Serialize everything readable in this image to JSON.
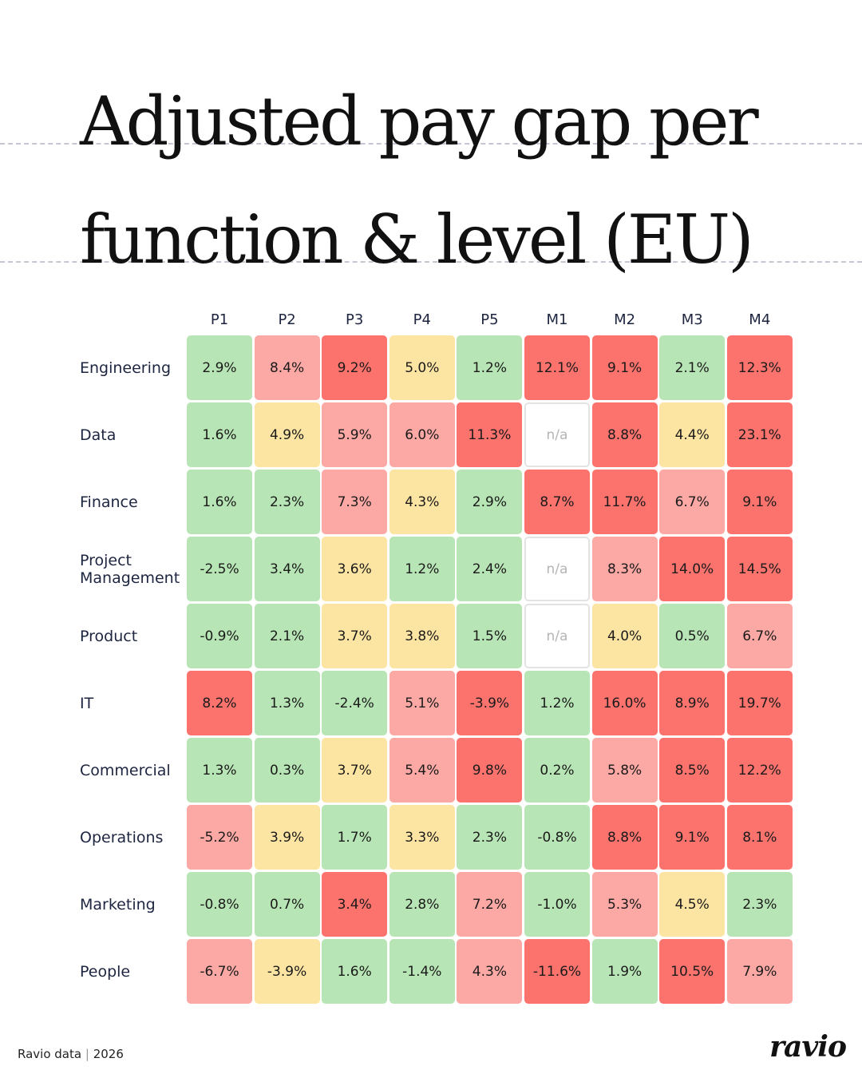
{
  "chart_data": {
    "type": "heatmap",
    "title": "Adjusted pay gap per function & level (EU)",
    "x": [
      "P1",
      "P2",
      "P3",
      "P4",
      "P5",
      "M1",
      "M2",
      "M3",
      "M4"
    ],
    "y": [
      "Engineering",
      "Data",
      "Finance",
      "Project Management",
      "Product",
      "IT",
      "Commercial",
      "Operations",
      "Marketing",
      "People"
    ],
    "values": [
      [
        2.9,
        8.4,
        9.2,
        5.0,
        1.2,
        12.1,
        9.1,
        2.1,
        12.3
      ],
      [
        1.6,
        4.9,
        5.9,
        6.0,
        11.3,
        null,
        8.8,
        4.4,
        23.1
      ],
      [
        1.6,
        2.3,
        7.3,
        4.3,
        2.9,
        8.7,
        11.7,
        6.7,
        9.1
      ],
      [
        -2.5,
        3.4,
        3.6,
        1.2,
        2.4,
        null,
        8.3,
        14.0,
        14.5
      ],
      [
        -0.9,
        2.1,
        3.7,
        3.8,
        1.5,
        null,
        4.0,
        0.5,
        6.7
      ],
      [
        8.2,
        1.3,
        -2.4,
        5.1,
        -3.9,
        1.2,
        16.0,
        8.9,
        19.7
      ],
      [
        1.3,
        0.3,
        3.7,
        5.4,
        9.8,
        0.2,
        5.8,
        8.5,
        12.2
      ],
      [
        -5.2,
        3.9,
        1.7,
        3.3,
        2.3,
        -0.8,
        8.8,
        9.1,
        8.1
      ],
      [
        -0.8,
        0.7,
        3.4,
        2.8,
        7.2,
        -1.0,
        5.3,
        4.5,
        2.3
      ],
      [
        -6.7,
        -3.9,
        1.6,
        -1.4,
        4.3,
        -11.6,
        1.9,
        10.5,
        7.9
      ]
    ],
    "value_labels": [
      [
        "2.9%",
        "8.4%",
        "9.2%",
        "5.0%",
        "1.2%",
        "12.1%",
        "9.1%",
        "2.1%",
        "12.3%"
      ],
      [
        "1.6%",
        "4.9%",
        "5.9%",
        "6.0%",
        "11.3%",
        "n/a",
        "8.8%",
        "4.4%",
        "23.1%"
      ],
      [
        "1.6%",
        "2.3%",
        "7.3%",
        "4.3%",
        "2.9%",
        "8.7%",
        "11.7%",
        "6.7%",
        "9.1%"
      ],
      [
        "-2.5%",
        "3.4%",
        "3.6%",
        "1.2%",
        "2.4%",
        "n/a",
        "8.3%",
        "14.0%",
        "14.5%"
      ],
      [
        "-0.9%",
        "2.1%",
        "3.7%",
        "3.8%",
        "1.5%",
        "n/a",
        "4.0%",
        "0.5%",
        "6.7%"
      ],
      [
        "8.2%",
        "1.3%",
        "-2.4%",
        "5.1%",
        "-3.9%",
        "1.2%",
        "16.0%",
        "8.9%",
        "19.7%"
      ],
      [
        "1.3%",
        "0.3%",
        "3.7%",
        "5.4%",
        "9.8%",
        "0.2%",
        "5.8%",
        "8.5%",
        "12.2%"
      ],
      [
        "-5.2%",
        "3.9%",
        "1.7%",
        "3.3%",
        "2.3%",
        "-0.8%",
        "8.8%",
        "9.1%",
        "8.1%"
      ],
      [
        "-0.8%",
        "0.7%",
        "3.4%",
        "2.8%",
        "7.2%",
        "-1.0%",
        "5.3%",
        "4.5%",
        "2.3%"
      ],
      [
        "-6.7%",
        "-3.9%",
        "1.6%",
        "-1.4%",
        "4.3%",
        "-11.6%",
        "1.9%",
        "10.5%",
        "7.9%"
      ]
    ],
    "colors": [
      [
        "#b8e5b5",
        "#fca9a5",
        "#fc736e",
        "#fce4a3",
        "#b8e5b5",
        "#fc736e",
        "#fc736e",
        "#b8e5b5",
        "#fc736e"
      ],
      [
        "#b8e5b5",
        "#fce4a3",
        "#fca9a5",
        "#fca9a5",
        "#fc736e",
        "#ffffff",
        "#fc736e",
        "#fce4a3",
        "#fc736e"
      ],
      [
        "#b8e5b5",
        "#b8e5b5",
        "#fca9a5",
        "#fce4a3",
        "#b8e5b5",
        "#fc736e",
        "#fc736e",
        "#fca9a5",
        "#fc736e"
      ],
      [
        "#b8e5b5",
        "#b8e5b5",
        "#fce4a3",
        "#b8e5b5",
        "#b8e5b5",
        "#ffffff",
        "#fca9a5",
        "#fc736e",
        "#fc736e"
      ],
      [
        "#b8e5b5",
        "#b8e5b5",
        "#fce4a3",
        "#fce4a3",
        "#b8e5b5",
        "#ffffff",
        "#fce4a3",
        "#b8e5b5",
        "#fca9a5"
      ],
      [
        "#fc736e",
        "#b8e5b5",
        "#b8e5b5",
        "#fca9a5",
        "#fc736e",
        "#b8e5b5",
        "#fc736e",
        "#fc736e",
        "#fc736e"
      ],
      [
        "#b8e5b5",
        "#b8e5b5",
        "#fce4a3",
        "#fca9a5",
        "#fc736e",
        "#b8e5b5",
        "#fca9a5",
        "#fc736e",
        "#fc736e"
      ],
      [
        "#fca9a5",
        "#fce4a3",
        "#b8e5b5",
        "#fce4a3",
        "#b8e5b5",
        "#b8e5b5",
        "#fc736e",
        "#fc736e",
        "#fc736e"
      ],
      [
        "#b8e5b5",
        "#b8e5b5",
        "#fc736e",
        "#b8e5b5",
        "#fca9a5",
        "#b8e5b5",
        "#fca9a5",
        "#fce4a3",
        "#b8e5b5"
      ],
      [
        "#fca9a5",
        "#fce4a3",
        "#b8e5b5",
        "#b8e5b5",
        "#fca9a5",
        "#fc736e",
        "#b8e5b5",
        "#fc736e",
        "#fca9a5"
      ]
    ]
  },
  "footer": {
    "source": "Ravio data",
    "year": "2026",
    "logo": "ravio"
  }
}
